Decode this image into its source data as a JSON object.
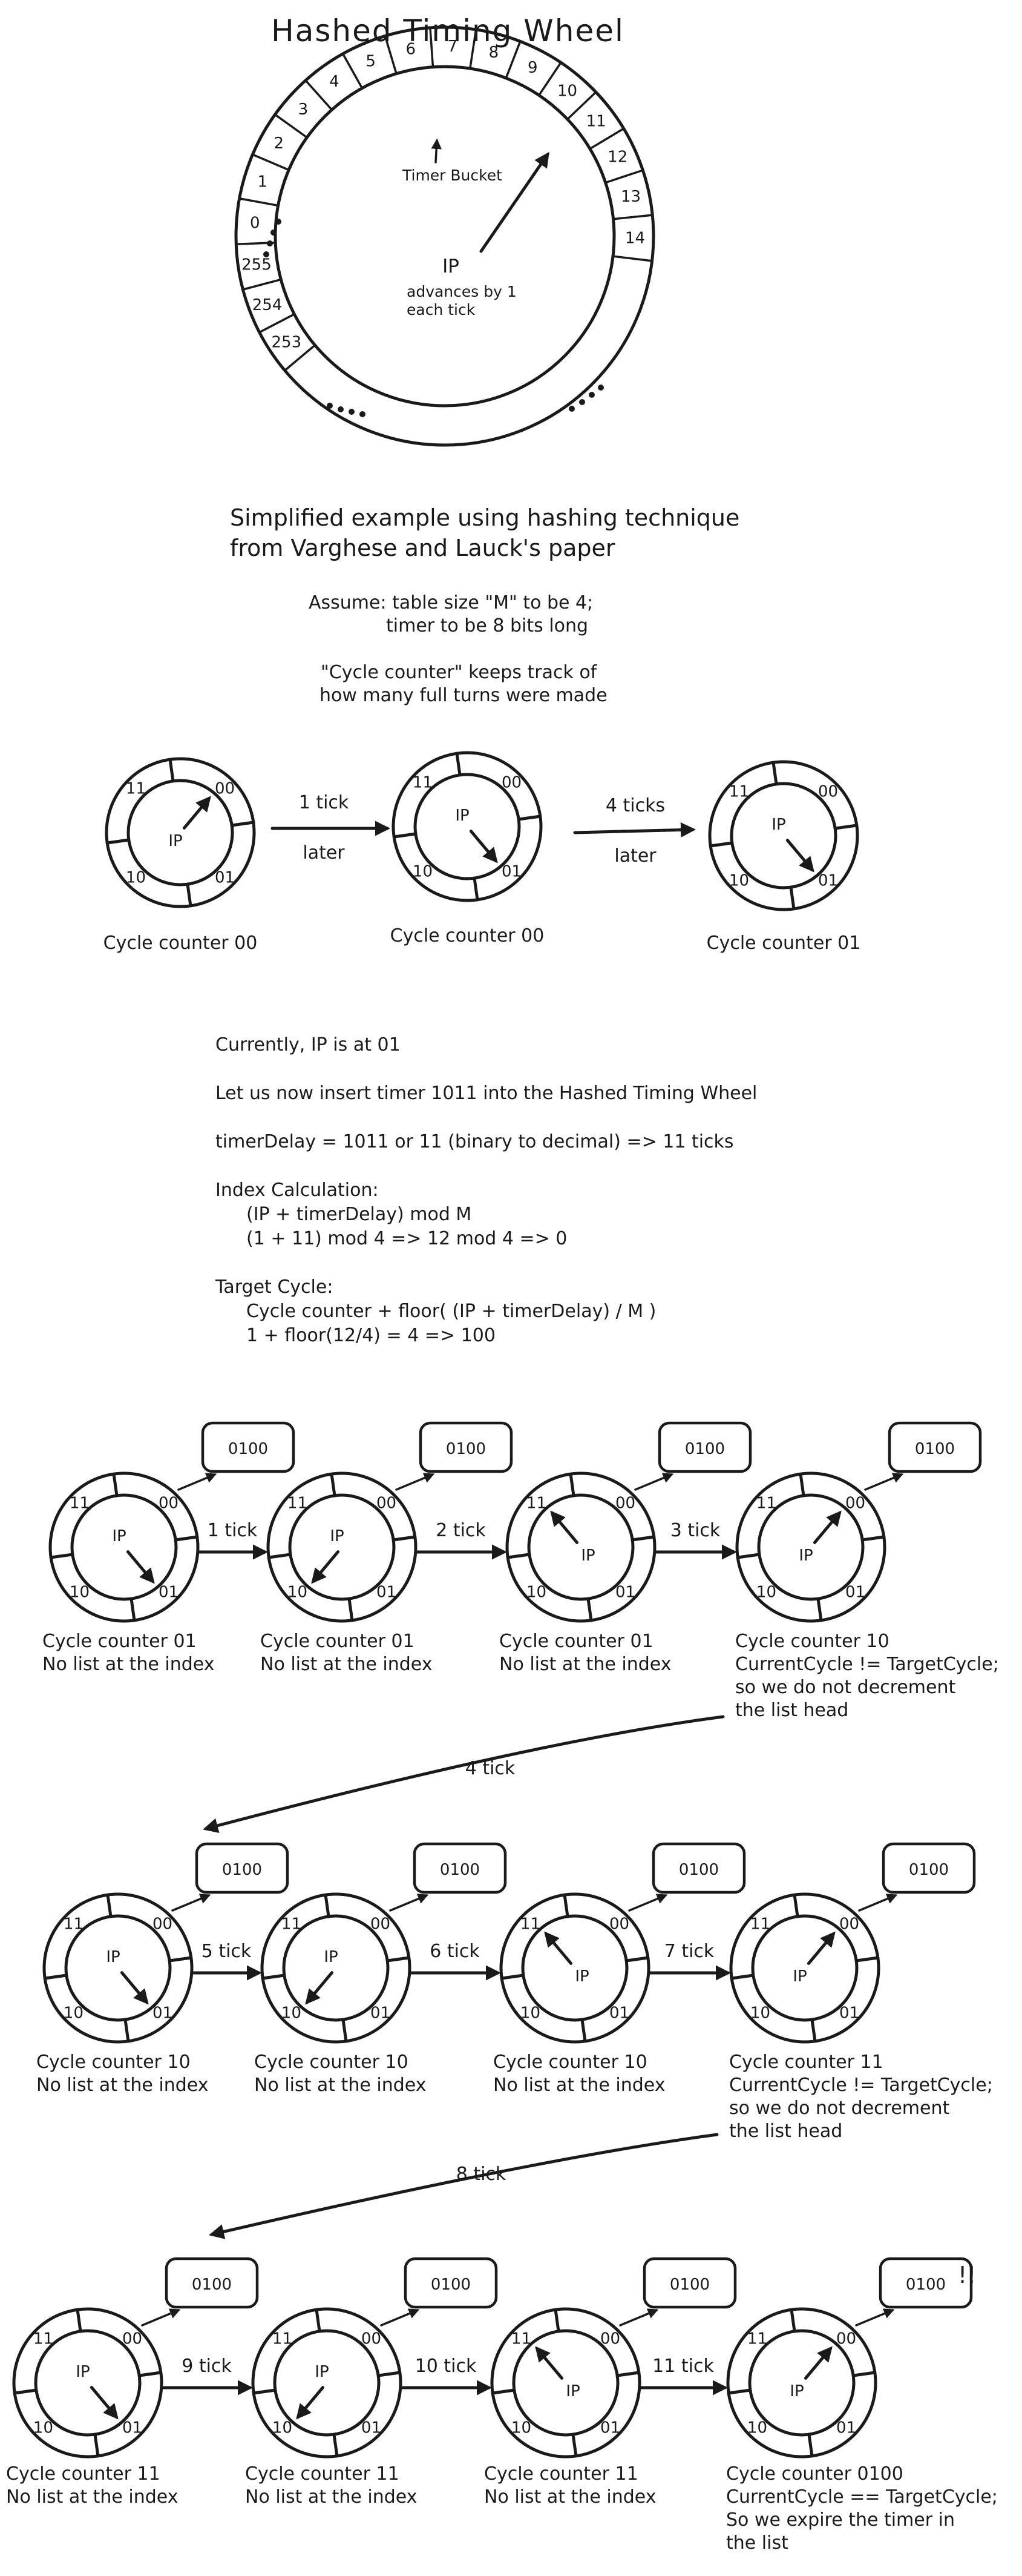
{
  "title": "Hashed Timing Wheel",
  "big_wheel": {
    "slots": [
      "253",
      "254",
      "255",
      "0",
      "1",
      "2",
      "3",
      "4",
      "5",
      "6",
      "7",
      "8",
      "9",
      "10",
      "11",
      "12",
      "13",
      "14"
    ],
    "bucket_label": "Timer Bucket",
    "ip_label": "IP",
    "ip_note_1": "advances by 1",
    "ip_note_2": "each tick"
  },
  "intro": {
    "line1": "Simplified example using hashing technique",
    "line2": "from Varghese and Lauck's paper",
    "assume1": "Assume: table size \"M\" to be 4;",
    "assume2": "timer to be 8 bits long",
    "cycle1": "\"Cycle counter\" keeps track of",
    "cycle2": "how many full turns were made"
  },
  "wheel_labels": {
    "q00": "00",
    "q01": "01",
    "q10": "10",
    "q11": "11",
    "ip": "IP"
  },
  "example": {
    "arrow1_top": "1 tick",
    "arrow1_bottom": "later",
    "arrow2_top": "4 ticks",
    "arrow2_bottom": "later",
    "captions": [
      "Cycle counter 00",
      "Cycle counter 00",
      "Cycle counter 01"
    ]
  },
  "calc": {
    "line1": "Currently, IP is at 01",
    "line2": "Let us now insert timer 1011 into the Hashed Timing Wheel",
    "line3": "timerDelay = 1011 or 11 (binary to decimal) => 11 ticks",
    "line4": "Index Calculation:",
    "line5": "(IP + timerDelay) mod M",
    "line6": "(1 + 11) mod 4 => 12 mod 4 => 0",
    "line7": "Target Cycle:",
    "line8": "Cycle counter + floor( (IP + timerDelay) / M )",
    "line9": "1 + floor(12/4) = 4 => 100"
  },
  "timer_box": "0100",
  "rows": [
    {
      "ticks": [
        "1 tick",
        "2 tick",
        "3 tick"
      ],
      "captions": [
        [
          "Cycle counter 01",
          "No list at the index"
        ],
        [
          "Cycle counter 01",
          "No list at the index"
        ],
        [
          "Cycle counter 01",
          "No list at the index"
        ],
        [
          "Cycle counter 10",
          "CurrentCycle != TargetCycle;",
          "so we do not decrement",
          "the list head"
        ]
      ],
      "wrap_label": "4 tick"
    },
    {
      "ticks": [
        "5 tick",
        "6 tick",
        "7 tick"
      ],
      "captions": [
        [
          "Cycle counter 10",
          "No list at the index"
        ],
        [
          "Cycle counter 10",
          "No list at the index"
        ],
        [
          "Cycle counter 10",
          "No list at the index"
        ],
        [
          "Cycle counter 11",
          "CurrentCycle != TargetCycle;",
          "so we do not decrement",
          "the list head"
        ]
      ],
      "wrap_label": "8 tick"
    },
    {
      "ticks": [
        "9 tick",
        "10 tick",
        "11 tick"
      ],
      "captions": [
        [
          "Cycle counter 11",
          "No list at the index"
        ],
        [
          "Cycle counter 11",
          "No list at the index"
        ],
        [
          "Cycle counter 11",
          "No list at the index"
        ],
        [
          "Cycle counter 0100",
          "CurrentCycle == TargetCycle;",
          "So we expire the timer in",
          "the list"
        ]
      ],
      "wrap_label": ""
    }
  ],
  "exclaim": "!!"
}
